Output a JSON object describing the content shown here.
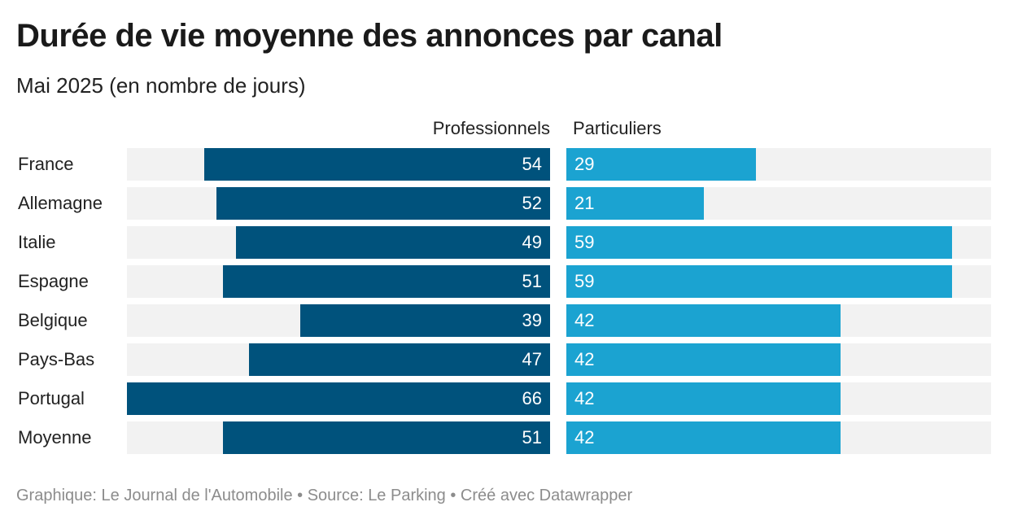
{
  "header": {
    "title": "Durée de vie moyenne des annonces par canal",
    "subtitle": "Mai 2025 (en nombre de jours)"
  },
  "footer": {
    "credit": "Graphique: Le Journal de l'Automobile • Source: Le Parking • Créé avec Datawrapper"
  },
  "colors": {
    "professionnels": "#00527c",
    "particuliers": "#1ba3d1",
    "track": "#f2f2f2"
  },
  "chart_data": {
    "type": "bar",
    "orientation": "horizontal",
    "title": "Durée de vie moyenne des annonces par canal",
    "subtitle": "Mai 2025 (en nombre de jours)",
    "categories": [
      "France",
      "Allemagne",
      "Italie",
      "Espagne",
      "Belgique",
      "Pays-Bas",
      "Portugal",
      "Moyenne"
    ],
    "series": [
      {
        "name": "Professionnels",
        "values": [
          54,
          52,
          49,
          51,
          39,
          47,
          66,
          51
        ],
        "direction": "right-to-left",
        "xlim": [
          0,
          66
        ]
      },
      {
        "name": "Particuliers",
        "values": [
          29,
          21,
          59,
          59,
          42,
          42,
          42,
          42
        ],
        "direction": "left-to-right",
        "xlim": [
          0,
          65
        ]
      }
    ],
    "grid": false,
    "legend": "column-headers"
  }
}
